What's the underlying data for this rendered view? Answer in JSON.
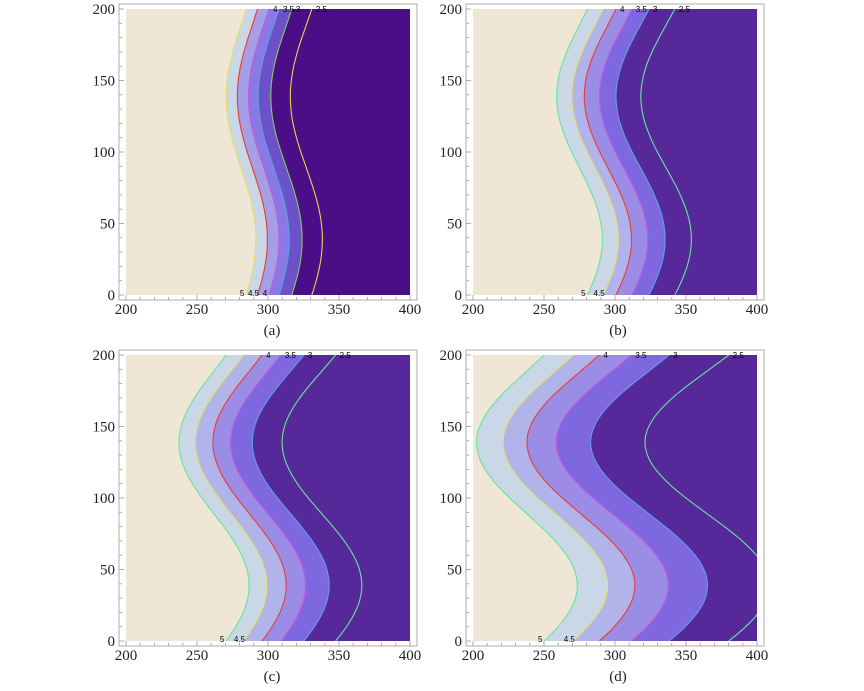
{
  "chart_data": [
    {
      "type": "contour",
      "caption": "(a)",
      "x_ticks": [
        "200",
        "250",
        "300",
        "350",
        "400"
      ],
      "y_ticks": [
        "0",
        "50",
        "100",
        "150",
        "200"
      ],
      "xlim": [
        200,
        400
      ],
      "ylim": [
        0,
        200
      ],
      "amplitude": 9,
      "levels": [
        {
          "value": 5,
          "label": "5",
          "x0": 281,
          "top_label": "",
          "bottom_label": "5",
          "line_color": "#e8e060"
        },
        {
          "value": 4.5,
          "label": "4.5",
          "x0": 289,
          "top_label": "",
          "bottom_label": "4.5",
          "line_color": "#ee3a30"
        },
        {
          "value": 4,
          "label": "4",
          "x0": 297,
          "top_label": "4",
          "bottom_label": "4",
          "line_color": "#c25be0"
        },
        {
          "value": 3.5,
          "label": "3.5",
          "x0": 304,
          "top_label": "3.5",
          "bottom_label": "",
          "line_color": "#5aa0ea"
        },
        {
          "value": 3,
          "label": "3",
          "x0": 313,
          "top_label": "3",
          "bottom_label": "",
          "line_color": "#8cc860"
        },
        {
          "value": 2.5,
          "label": "2.5",
          "x0": 327,
          "top_label": "2.5",
          "bottom_label": "",
          "line_color": "#e8d34a"
        }
      ],
      "fill_colors": [
        "#efe6d5",
        "#c9d7e7",
        "#a59fe6",
        "#8a79e4",
        "#6c52c8",
        "#4b0e86"
      ]
    },
    {
      "type": "contour",
      "caption": "(b)",
      "x_ticks": [
        "200",
        "250",
        "300",
        "350",
        "400"
      ],
      "y_ticks": [
        "0",
        "50",
        "100",
        "150",
        "200"
      ],
      "xlim": [
        200,
        400
      ],
      "ylim": [
        0,
        200
      ],
      "amplitude": 14,
      "levels": [
        {
          "value": 5,
          "label": "5",
          "x0": 275,
          "top_label": "",
          "bottom_label": "5",
          "line_color": "#63e6a0"
        },
        {
          "value": 4.5,
          "label": "4.5",
          "x0": 286,
          "top_label": "",
          "bottom_label": "4.5",
          "line_color": "#e8e060"
        },
        {
          "value": 4,
          "label": "4",
          "x0": 295,
          "top_label": "4",
          "bottom_label": "",
          "line_color": "#ee3a30"
        },
        {
          "value": 3.5,
          "label": "3.5",
          "x0": 306,
          "top_label": "3.5",
          "bottom_label": "",
          "line_color": "#c25be0"
        },
        {
          "value": 3,
          "label": "3",
          "x0": 318,
          "top_label": "3",
          "bottom_label": "",
          "line_color": "#5aa0ea"
        },
        {
          "value": 2.5,
          "label": "2.5",
          "x0": 336,
          "top_label": "2.5",
          "bottom_label": "",
          "line_color": "#63e6a0"
        }
      ],
      "fill_colors": [
        "#efe6d5",
        "#c9d7e7",
        "#b1b4ea",
        "#9b8de6",
        "#7f68df",
        "#57289a"
      ]
    },
    {
      "type": "contour",
      "caption": "(c)",
      "x_ticks": [
        "200",
        "250",
        "300",
        "350",
        "400"
      ],
      "y_ticks": [
        "0",
        "50",
        "100",
        "150",
        "200"
      ],
      "xlim": [
        200,
        400
      ],
      "ylim": [
        0,
        200
      ],
      "amplitude": 22,
      "levels": [
        {
          "value": 5,
          "label": "5",
          "x0": 262,
          "top_label": "",
          "bottom_label": "5",
          "line_color": "#63e6a0"
        },
        {
          "value": 4.5,
          "label": "4.5",
          "x0": 274,
          "top_label": "",
          "bottom_label": "4.5",
          "line_color": "#e8e060"
        },
        {
          "value": 4,
          "label": "4",
          "x0": 287,
          "top_label": "4",
          "bottom_label": "",
          "line_color": "#ee3a30"
        },
        {
          "value": 3.5,
          "label": "3.5",
          "x0": 300,
          "top_label": "3.5",
          "bottom_label": "",
          "line_color": "#c25be0"
        },
        {
          "value": 3,
          "label": "3",
          "x0": 316,
          "top_label": "3",
          "bottom_label": "",
          "line_color": "#5aa0ea"
        },
        {
          "value": 2.5,
          "label": "2.5",
          "x0": 338,
          "top_label": "2.5",
          "bottom_label": "",
          "line_color": "#63e6a0"
        }
      ],
      "fill_colors": [
        "#efe6d5",
        "#c9d7e7",
        "#b1b4ea",
        "#9b8de6",
        "#7f68df",
        "#57289a"
      ]
    },
    {
      "type": "contour",
      "caption": "(d)",
      "x_ticks": [
        "200",
        "250",
        "300",
        "350",
        "400"
      ],
      "y_ticks": [
        "0",
        "50",
        "100",
        "150",
        "200"
      ],
      "xlim": [
        200,
        400
      ],
      "ylim": [
        0,
        200
      ],
      "amplitude": 33,
      "levels": [
        {
          "value": 5,
          "label": "5",
          "x0": 238,
          "top_label": "",
          "bottom_label": "5",
          "line_color": "#63e6a0"
        },
        {
          "value": 4.5,
          "label": "4.5",
          "x0": 258,
          "top_label": "",
          "bottom_label": "4.5",
          "line_color": "#e8e060"
        },
        {
          "value": 4,
          "label": "4",
          "x0": 276,
          "top_label": "4",
          "bottom_label": "",
          "line_color": "#ee3a30"
        },
        {
          "value": 3.5,
          "label": "3.5",
          "x0": 298,
          "top_label": "3.5",
          "bottom_label": "",
          "line_color": "#c25be0"
        },
        {
          "value": 3,
          "label": "3",
          "x0": 324,
          "top_label": "3",
          "bottom_label": "",
          "line_color": "#5aa0ea"
        },
        {
          "value": 2.5,
          "label": "2.5",
          "x0": 365,
          "top_label": "2.5",
          "bottom_label": "",
          "line_color": "#63e6a0"
        }
      ],
      "fill_colors": [
        "#efe6d5",
        "#c9d7e7",
        "#b1b4ea",
        "#9b8de6",
        "#7f68df",
        "#57289a"
      ]
    }
  ]
}
